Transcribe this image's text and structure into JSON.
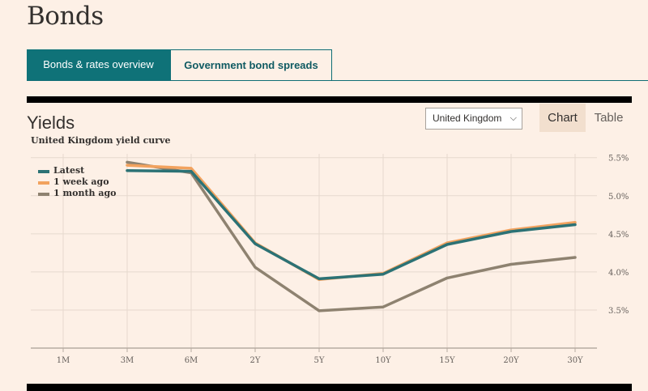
{
  "page": {
    "title": "Bonds"
  },
  "tabs": [
    {
      "label": "Bonds & rates overview",
      "active": true
    },
    {
      "label": "Government bond spreads",
      "active": false
    }
  ],
  "section": {
    "title": "Yields"
  },
  "country_select": {
    "selected": "United Kingdom"
  },
  "view_toggle": {
    "chart_label": "Chart",
    "table_label": "Table",
    "active": "Chart"
  },
  "colors": {
    "latest": "#2c7275",
    "week": "#f2a25e",
    "month": "#8e8270",
    "brand_teal": "#0f7278"
  },
  "chart_data": {
    "type": "line",
    "title": "United Kingdom yield curve",
    "categories": [
      "1M",
      "3M",
      "6M",
      "2Y",
      "5Y",
      "10Y",
      "15Y",
      "20Y",
      "30Y"
    ],
    "y_ticks": [
      "3.5%",
      "4.0%",
      "4.5%",
      "5.0%",
      "5.5%"
    ],
    "ylim": [
      3.0,
      5.55
    ],
    "y_axis_side": "right",
    "grid": true,
    "legend_position": "top-left",
    "series": [
      {
        "name": "Latest",
        "values": [
          null,
          5.33,
          5.32,
          4.37,
          3.91,
          3.97,
          4.36,
          4.53,
          4.62
        ]
      },
      {
        "name": "1 week ago",
        "values": [
          null,
          5.4,
          5.36,
          4.38,
          3.9,
          3.98,
          4.38,
          4.55,
          4.65
        ]
      },
      {
        "name": "1 month ago",
        "values": [
          null,
          5.44,
          5.3,
          4.06,
          3.49,
          3.54,
          3.92,
          4.1,
          4.19
        ]
      }
    ]
  }
}
